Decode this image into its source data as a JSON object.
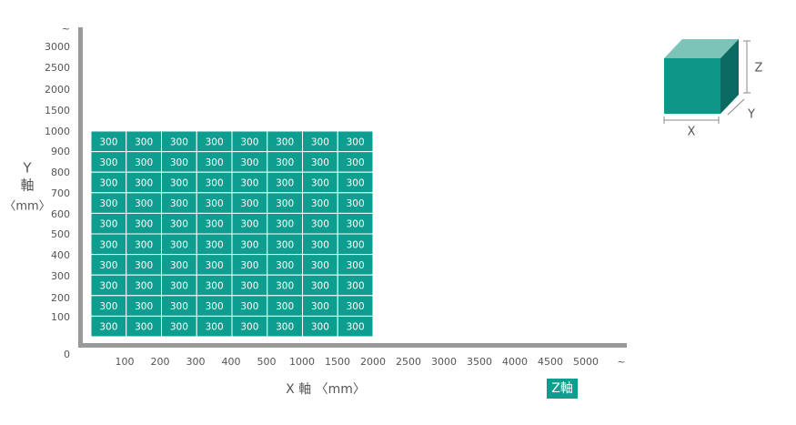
{
  "y_axis": {
    "label_lines": [
      "Y",
      "軸",
      "〈mm〉"
    ],
    "ticks": [
      "~",
      "3000",
      "2500",
      "2000",
      "1500",
      "1000",
      "900",
      "800",
      "700",
      "600",
      "500",
      "400",
      "300",
      "200",
      "100",
      "0"
    ]
  },
  "x_axis": {
    "label": "X 軸 〈mm〉",
    "ticks": [
      "100",
      "200",
      "300",
      "400",
      "500",
      "1000",
      "1500",
      "2000",
      "2500",
      "3000",
      "3500",
      "4000",
      "4500",
      "5000",
      "~"
    ]
  },
  "z_label": "Z軸",
  "grid": {
    "rows": [
      [
        "300",
        "300",
        "300",
        "300",
        "300",
        "300",
        "300",
        "300"
      ],
      [
        "300",
        "300",
        "300",
        "300",
        "300",
        "300",
        "300",
        "300"
      ],
      [
        "300",
        "300",
        "300",
        "300",
        "300",
        "300",
        "300",
        "300"
      ],
      [
        "300",
        "300",
        "300",
        "300",
        "300",
        "300",
        "300",
        "300"
      ],
      [
        "300",
        "300",
        "300",
        "300",
        "300",
        "300",
        "300",
        "300"
      ],
      [
        "300",
        "300",
        "300",
        "300",
        "300",
        "300",
        "300",
        "300"
      ],
      [
        "300",
        "300",
        "300",
        "300",
        "300",
        "300",
        "300",
        "300"
      ],
      [
        "300",
        "300",
        "300",
        "300",
        "300",
        "300",
        "300",
        "300"
      ],
      [
        "300",
        "300",
        "300",
        "300",
        "300",
        "300",
        "300",
        "300"
      ],
      [
        "300",
        "300",
        "300",
        "300",
        "300",
        "300",
        "300",
        "300"
      ]
    ]
  },
  "cube": {
    "x": "X",
    "y": "Y",
    "z": "Z"
  }
}
